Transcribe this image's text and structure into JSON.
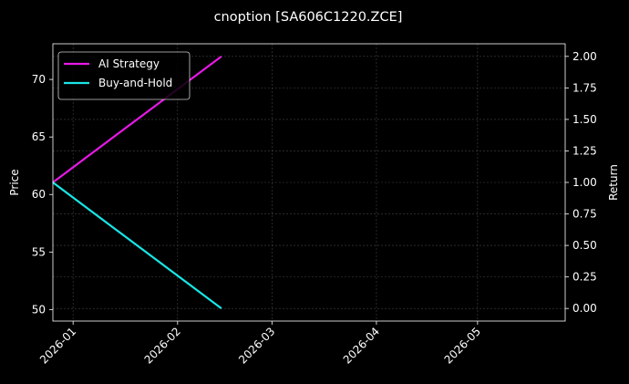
{
  "chart_data": {
    "type": "line",
    "title": "cnoption [SA606C1220.ZCE]",
    "xlabel": "",
    "ylabel_left": "Price",
    "ylabel_right": "Return",
    "x_axis": {
      "type": "date",
      "range": [
        "2025-12-26",
        "2026-05-27"
      ],
      "ticks": [
        "2026-01-01",
        "2026-02-01",
        "2026-03-01",
        "2026-04-01",
        "2026-05-01"
      ],
      "tick_labels": [
        "2026-01",
        "2026-02",
        "2026-03",
        "2026-04",
        "2026-05"
      ]
    },
    "y_left": {
      "range": [
        49.0,
        73.1
      ],
      "ticks": [
        50,
        55,
        60,
        65,
        70
      ],
      "tick_labels": [
        "50",
        "55",
        "60",
        "65",
        "70"
      ]
    },
    "y_right": {
      "range": [
        -0.1,
        2.1
      ],
      "ticks": [
        0.0,
        0.25,
        0.5,
        0.75,
        1.0,
        1.25,
        1.5,
        1.75,
        2.0
      ],
      "tick_labels": [
        "0.00",
        "0.25",
        "0.50",
        "0.75",
        "1.00",
        "1.25",
        "1.50",
        "1.75",
        "2.00"
      ]
    },
    "grid": true,
    "legend_position": "top-left",
    "series": [
      {
        "name": "AI Strategy",
        "axis": "right",
        "color": "#e619e6",
        "x": [
          "2025-12-26",
          "2026-02-14"
        ],
        "y": [
          1.0,
          2.0
        ]
      },
      {
        "name": "Buy-and-Hold",
        "axis": "right",
        "color": "#19e6e6",
        "x": [
          "2025-12-26",
          "2026-02-14"
        ],
        "y": [
          1.0,
          0.0
        ]
      }
    ]
  }
}
